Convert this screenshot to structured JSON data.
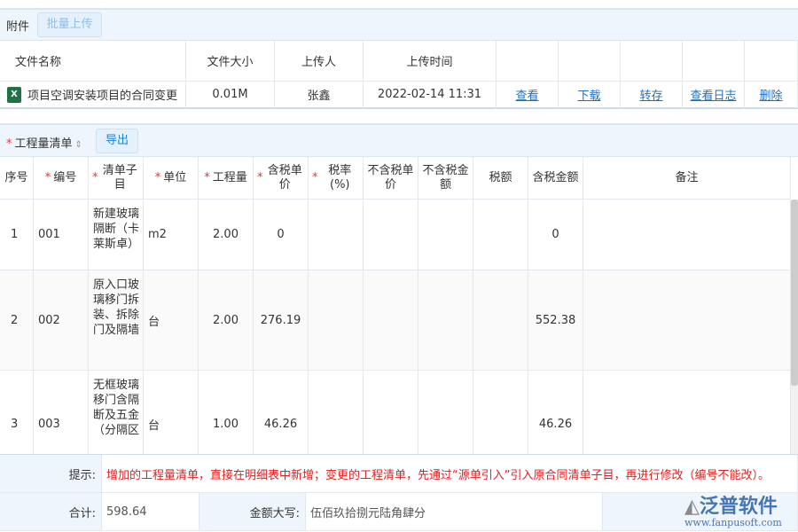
{
  "attachments": {
    "title": "附件",
    "batch_upload": "批量上传",
    "columns": [
      "文件名称",
      "文件大小",
      "上传人",
      "上传时间"
    ],
    "file": {
      "icon": "excel-file-icon",
      "name": "项目空调安装项目的合同变更",
      "size": "0.01M",
      "uploader": "张鑫",
      "time": "2022-02-14 11:31",
      "actions": [
        "查看",
        "下载",
        "转存",
        "查看日志",
        "删除"
      ]
    }
  },
  "bill": {
    "title": "工程量清单",
    "export": "导出",
    "columns": [
      {
        "label": "序号",
        "req": false
      },
      {
        "label": "编号",
        "req": true
      },
      {
        "label": "清单子目",
        "req": true
      },
      {
        "label": "单位",
        "req": true
      },
      {
        "label": "工程量",
        "req": true
      },
      {
        "label": "含税单价",
        "req": true
      },
      {
        "label": "税率(%)",
        "req": true
      },
      {
        "label": "不含税单价",
        "req": false
      },
      {
        "label": "不含税金额",
        "req": false
      },
      {
        "label": "税额",
        "req": false
      },
      {
        "label": "含税金额",
        "req": false
      },
      {
        "label": "备注",
        "req": false
      }
    ],
    "rows": [
      [
        "1",
        "001",
        "新建玻璃隔断（卡莱斯卓）",
        "m2",
        "2.00",
        "0",
        "",
        "",
        "",
        "",
        "0",
        ""
      ],
      [
        "2",
        "002",
        "原入口玻璃移门拆装、拆除门及隔墙",
        "台",
        "2.00",
        "276.19",
        "",
        "",
        "",
        "",
        "552.38",
        ""
      ],
      [
        "3",
        "003",
        "无框玻璃移门含隔断及五金（分隔区",
        "台",
        "1.00",
        "46.26",
        "",
        "",
        "",
        "",
        "46.26",
        ""
      ]
    ]
  },
  "footer": {
    "tip_label": "提示:",
    "tip": "增加的工程量清单，直接在明细表中新增；变更的工程清单，先通过“源单引入”引入原合同清单子目，再进行修改（编号不能改）。",
    "total_label": "合计:",
    "total": "598.64",
    "amount_label": "金额大写:",
    "amount": "伍佰玖拾捌元陆角肆分"
  },
  "watermark": {
    "brand": "泛普软件",
    "url": "www.fanpusoft.com"
  },
  "colors": {
    "accent": "#1e82d2",
    "tip": "#e02020",
    "header_bg": "#eef5fc"
  }
}
